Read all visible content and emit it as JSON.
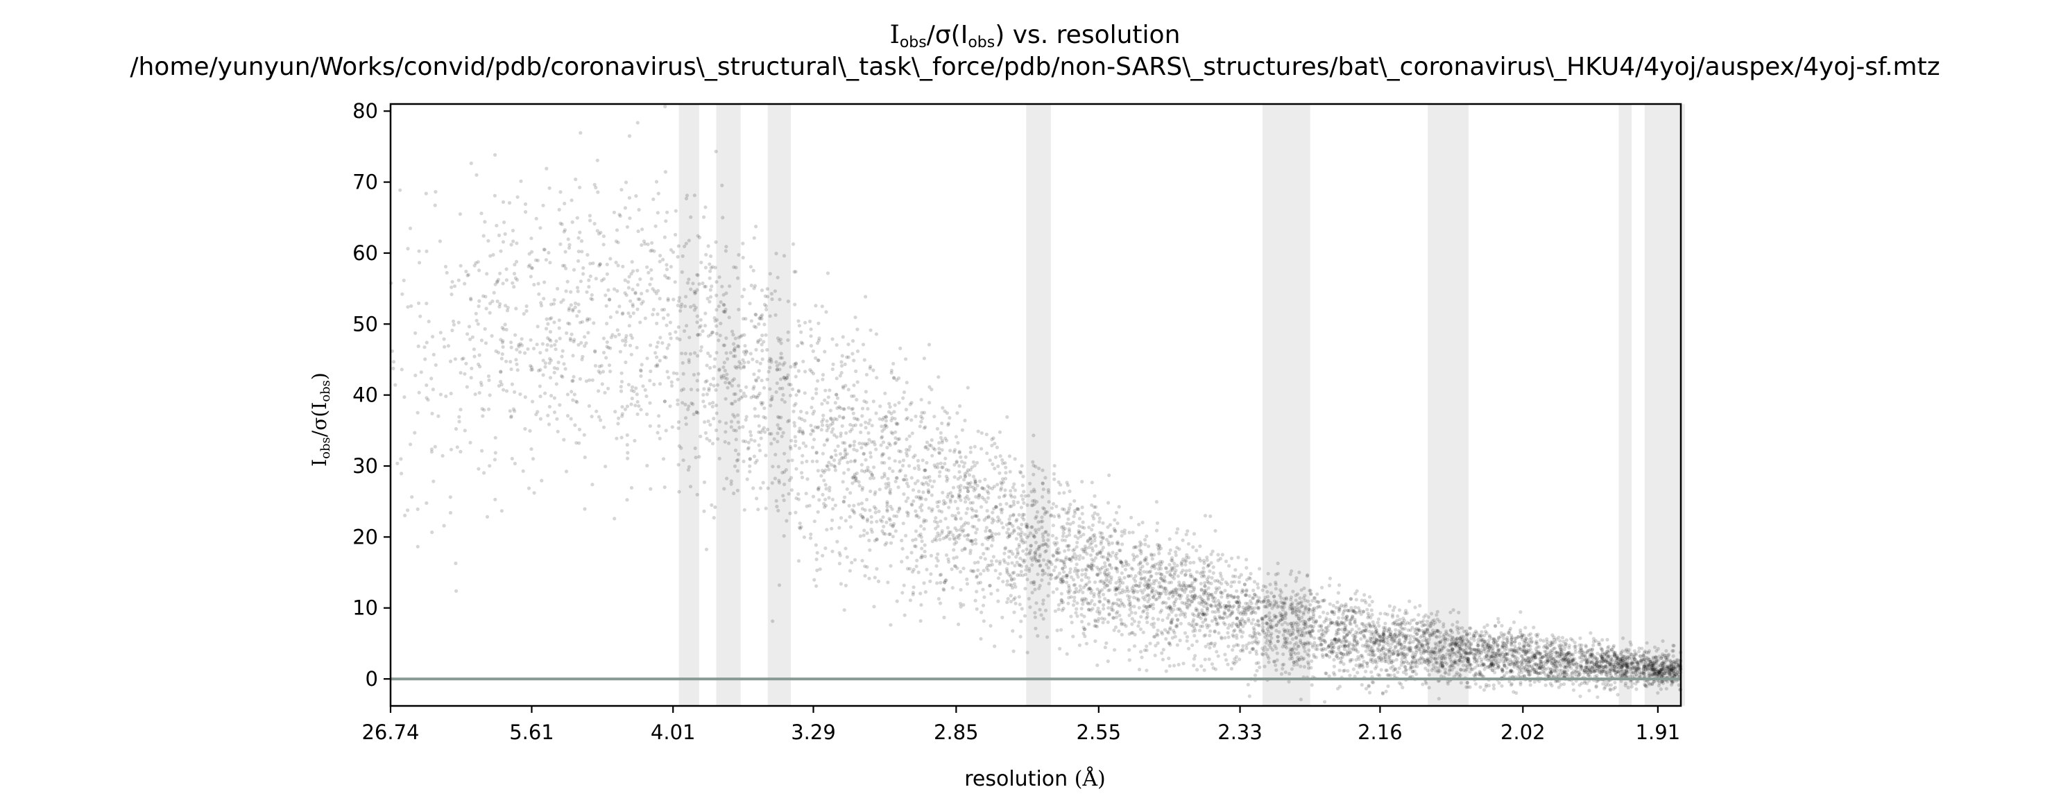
{
  "chart_data": {
    "type": "scatter",
    "title": {
      "line1": {
        "main": "I",
        "sub": "obs",
        "mid": "/σ(I",
        "sub2": "obs",
        "tail": ") vs. resolution"
      },
      "line2": "/home/yunyun/Works/convid/pdb/coronavirus\\_structural\\_task\\_force/pdb/non-SARS\\_structures/bat\\_coronavirus\\_HKU4/4yoj/auspex/4yoj-sf.mtz"
    },
    "xlabel": {
      "text": "resolution ",
      "unit": "(Å)"
    },
    "ylabel": {
      "main": "I",
      "sub": "obs",
      "mid": "/σ(I",
      "sub2": "obs",
      "tail": ")"
    },
    "x_scale": "reciprocal-square (1/d²)",
    "xlim": [
      26.74,
      1.893
    ],
    "ylim": [
      -3.8,
      81
    ],
    "x_tick_labels": [
      "26.74",
      "5.61",
      "4.01",
      "3.29",
      "2.85",
      "2.55",
      "2.33",
      "2.16",
      "2.02",
      "1.91"
    ],
    "y_ticks": [
      0,
      10,
      20,
      30,
      40,
      50,
      60,
      70,
      80
    ],
    "y_tick_labels": [
      "0",
      "10",
      "20",
      "30",
      "40",
      "50",
      "60",
      "70",
      "80"
    ],
    "reference_line_y": 0,
    "ice_ring_bands_angstrom": [
      [
        3.97,
        3.84
      ],
      [
        3.74,
        3.61
      ],
      [
        3.48,
        3.38
      ],
      [
        2.69,
        2.64
      ],
      [
        2.3,
        2.24
      ],
      [
        2.11,
        2.07
      ],
      [
        1.94,
        1.93
      ],
      [
        1.92,
        1.89
      ]
    ],
    "series": [
      {
        "points_description": "dense reflections cloud",
        "density_profile": [
          {
            "resolution": 26.74,
            "y_mean": 45,
            "y_spread": 25
          },
          {
            "resolution": 5.61,
            "y_mean": 50,
            "y_spread": 20
          },
          {
            "resolution": 4.01,
            "y_mean": 50,
            "y_spread": 20
          },
          {
            "resolution": 3.29,
            "y_mean": 35,
            "y_spread": 18
          },
          {
            "resolution": 2.85,
            "y_mean": 24,
            "y_spread": 13
          },
          {
            "resolution": 2.55,
            "y_mean": 15,
            "y_spread": 9
          },
          {
            "resolution": 2.33,
            "y_mean": 9,
            "y_spread": 7
          },
          {
            "resolution": 2.16,
            "y_mean": 5,
            "y_spread": 5
          },
          {
            "resolution": 2.02,
            "y_mean": 3,
            "y_spread": 3.5
          },
          {
            "resolution": 1.91,
            "y_mean": 1.5,
            "y_spread": 2.5
          }
        ]
      }
    ],
    "colors": {
      "points": "#000000",
      "bands": "#e0e0e0",
      "zero_line": "#8a9a95",
      "axes": "#000000"
    }
  }
}
